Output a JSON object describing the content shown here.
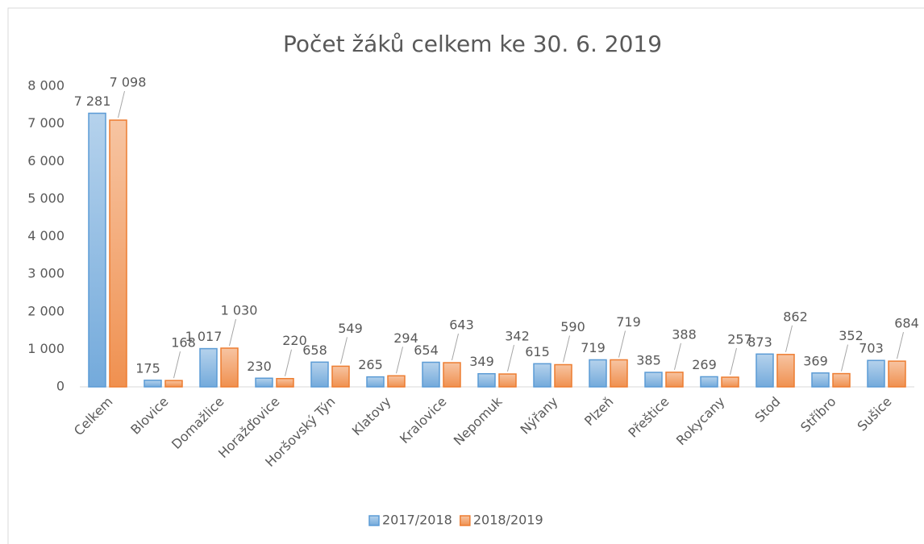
{
  "chart_data": {
    "type": "bar",
    "title": "Počet žáků celkem ke 30. 6. 2019",
    "categories": [
      "Celkem",
      "Blovice",
      "Domažlice",
      "Horažďovice",
      "Horšovský Týn",
      "Klatovy",
      "Kralovice",
      "Nepomuk",
      "Nýřany",
      "Plzeň",
      "Přeštice",
      "Rokycany",
      "Stod",
      "Stříbro",
      "Sušice"
    ],
    "series": [
      {
        "name": "2017/2018",
        "color": "#5b9bd5",
        "values": [
          7281,
          175,
          1017,
          230,
          658,
          265,
          654,
          349,
          615,
          719,
          385,
          269,
          873,
          369,
          703
        ],
        "value_labels": [
          "7 281",
          "175",
          "1 017",
          "230",
          "658",
          "265",
          "654",
          "349",
          "615",
          "719",
          "385",
          "269",
          "873",
          "369",
          "703"
        ]
      },
      {
        "name": "2018/2019",
        "color": "#ed7d31",
        "values": [
          7098,
          168,
          1030,
          220,
          549,
          294,
          643,
          342,
          590,
          719,
          388,
          257,
          862,
          352,
          684
        ],
        "value_labels": [
          "7 098",
          "168",
          "1 030",
          "220",
          "549",
          "294",
          "643",
          "342",
          "590",
          "719",
          "388",
          "257",
          "862",
          "352",
          "684"
        ]
      }
    ],
    "ylim": [
      0,
      8000
    ],
    "yticks": [
      0,
      {
        "value": 1000,
        "label": "1 000"
      },
      {
        "value": 2000,
        "label": "2 000"
      },
      {
        "value": 3000,
        "label": "3 000"
      },
      {
        "value": 4000,
        "label": "4 000"
      },
      {
        "value": 5000,
        "label": "5 000"
      },
      {
        "value": 6000,
        "label": "6 000"
      },
      {
        "value": 7000,
        "label": "7 000"
      },
      {
        "value": 8000,
        "label": "8 000"
      }
    ],
    "legend": "bottom"
  }
}
